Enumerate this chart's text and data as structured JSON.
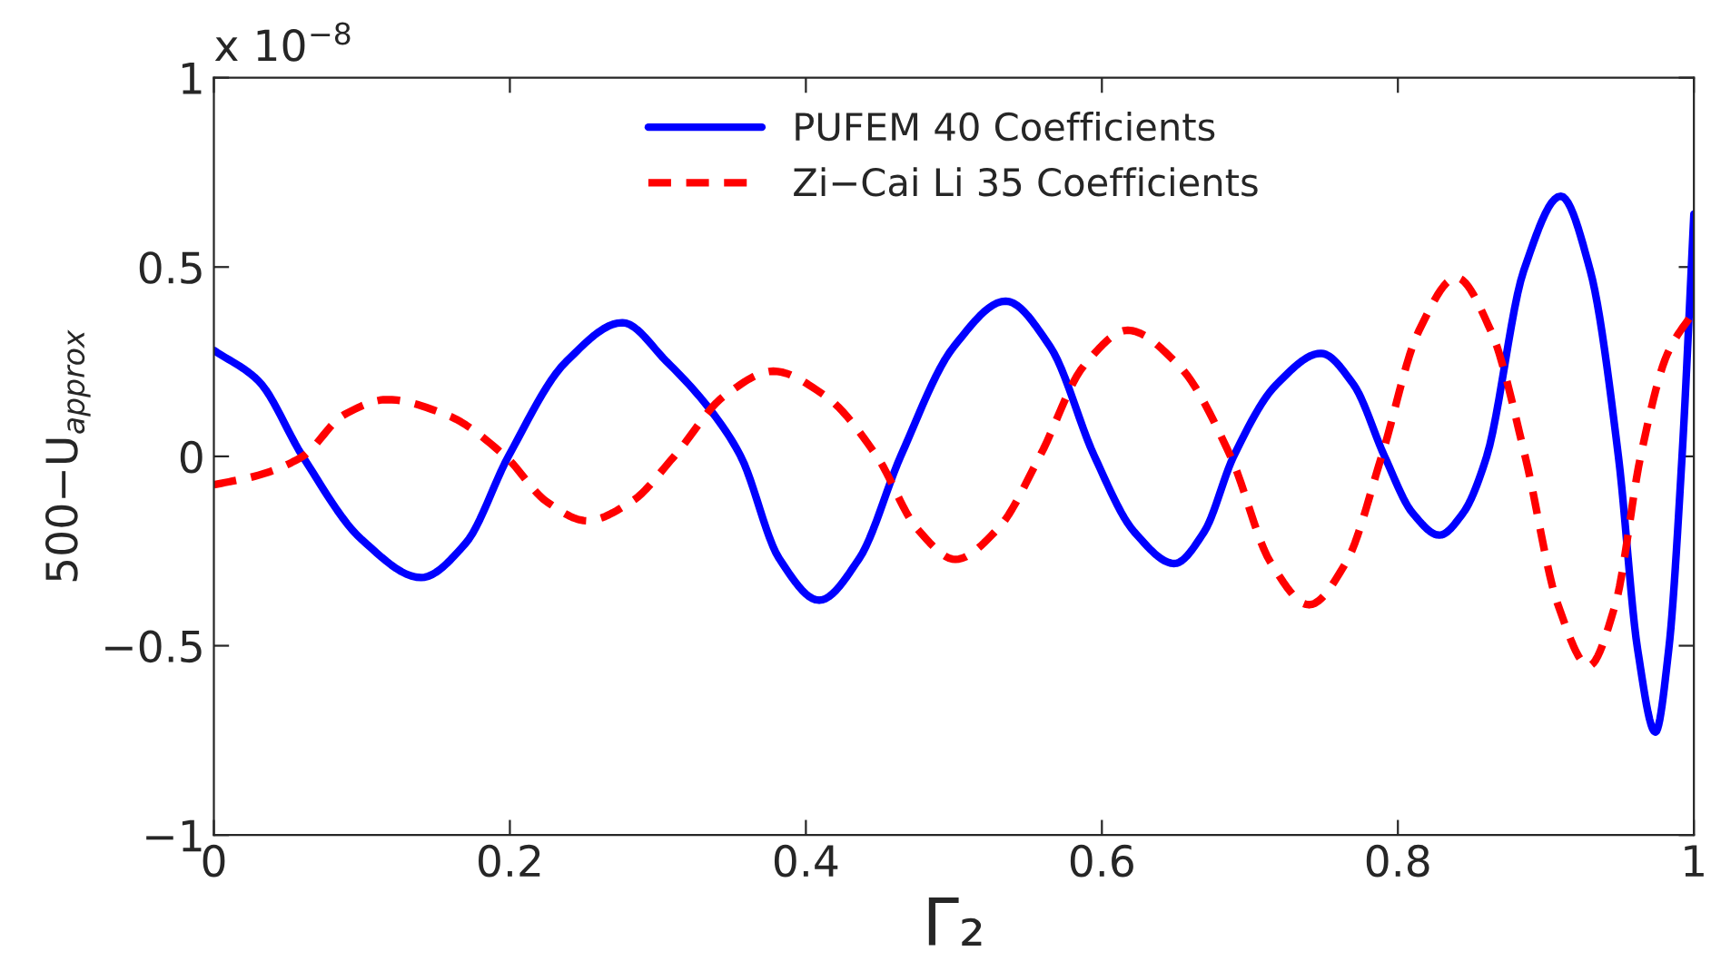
{
  "chart_data": {
    "type": "line",
    "xlabel": "Γ₂",
    "ylabel": "500−U$_{approx}$",
    "annotations": [
      "x 10$^{−8}$"
    ],
    "xlim": [
      0,
      1
    ],
    "ylim": [
      -1,
      1
    ],
    "xticks": [
      0,
      0.2,
      0.4,
      0.6,
      0.8,
      1
    ],
    "yticks": [
      {
        "value": -1,
        "label": "−1"
      },
      {
        "value": -0.5,
        "label": "−0.5"
      },
      0,
      0.5,
      1
    ],
    "grid": false,
    "legend": "top",
    "series": [
      {
        "name": "PUFEM 40 Coefficients",
        "color": "#0000ff",
        "line_style": "solid",
        "x": [
          0,
          0.03,
          0.06,
          0.1,
          0.14,
          0.17,
          0.199,
          0.238,
          0.276,
          0.306,
          0.336,
          0.356,
          0.382,
          0.409,
          0.436,
          0.464,
          0.5,
          0.535,
          0.565,
          0.595,
          0.622,
          0.649,
          0.669,
          0.689,
          0.718,
          0.748,
          0.77,
          0.791,
          0.81,
          0.828,
          0.844,
          0.86,
          0.885,
          0.91,
          0.93,
          0.949,
          0.962,
          0.974,
          0.983,
          0.992,
          1.0
        ],
        "values": [
          0.28,
          0.2,
          0.0,
          -0.22,
          -0.32,
          -0.23,
          0.0,
          0.25,
          0.353,
          0.25,
          0.12,
          0.0,
          -0.27,
          -0.38,
          -0.27,
          0.0,
          0.29,
          0.41,
          0.29,
          0.0,
          -0.2,
          -0.283,
          -0.2,
          0.0,
          0.19,
          0.272,
          0.19,
          0.0,
          -0.15,
          -0.208,
          -0.15,
          0.0,
          0.49,
          0.687,
          0.49,
          0.0,
          -0.51,
          -0.728,
          -0.51,
          0.0,
          0.64
        ]
      },
      {
        "name": "Zi−Cai Li 35 Coefficients",
        "color": "#ff0000",
        "line_style": "dashed",
        "x": [
          0,
          0.03,
          0.06,
          0.088,
          0.117,
          0.157,
          0.197,
          0.225,
          0.252,
          0.282,
          0.311,
          0.345,
          0.378,
          0.413,
          0.448,
          0.475,
          0.501,
          0.53,
          0.558,
          0.588,
          0.6175,
          0.652,
          0.687,
          0.714,
          0.74,
          0.765,
          0.789,
          0.814,
          0.8395,
          0.863,
          0.886,
          0.908,
          0.929,
          0.947,
          0.964,
          0.982,
          1.0
        ],
        "values": [
          -0.075,
          -0.05,
          0.0,
          0.11,
          0.15,
          0.11,
          0.0,
          -0.12,
          -0.17,
          -0.12,
          0.0,
          0.16,
          0.225,
          0.16,
          0.0,
          -0.19,
          -0.272,
          -0.19,
          0.0,
          0.24,
          0.333,
          0.24,
          0.0,
          -0.28,
          -0.392,
          -0.28,
          0.0,
          0.33,
          0.472,
          0.33,
          0.0,
          -0.39,
          -0.553,
          -0.39,
          0.0,
          0.27,
          0.383
        ]
      }
    ]
  }
}
